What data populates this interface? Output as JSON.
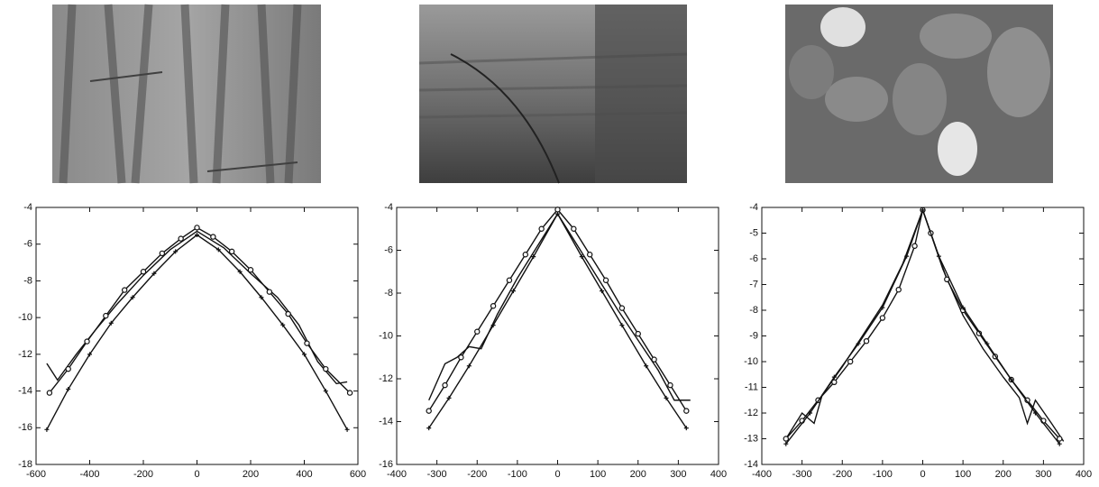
{
  "chart_data": [
    {
      "type": "line",
      "xlim": [
        -600,
        600
      ],
      "xticks": [
        -600,
        -400,
        -200,
        0,
        200,
        400,
        600
      ],
      "ylim": [
        -18,
        -4
      ],
      "yticks": [
        -18,
        -16,
        -14,
        -12,
        -10,
        -8,
        -6,
        -4
      ],
      "series": [
        {
          "color": "#111111",
          "marker": "none",
          "x": [
            -560,
            -520,
            -450,
            -380,
            -300,
            -200,
            -100,
            0,
            100,
            200,
            300,
            380,
            450,
            520,
            560
          ],
          "values": [
            -12.5,
            -13.4,
            -12.0,
            -10.7,
            -9.3,
            -7.7,
            -6.3,
            -5.3,
            -6.2,
            -7.6,
            -8.9,
            -10.4,
            -12.4,
            -13.6,
            -13.5
          ]
        },
        {
          "color": "#111111",
          "marker": "circle",
          "x": [
            -550,
            -480,
            -410,
            -340,
            -270,
            -200,
            -130,
            -60,
            0,
            60,
            130,
            200,
            270,
            340,
            410,
            480,
            570
          ],
          "values": [
            -14.1,
            -12.8,
            -11.3,
            -9.9,
            -8.5,
            -7.5,
            -6.5,
            -5.7,
            -5.1,
            -5.6,
            -6.4,
            -7.4,
            -8.6,
            -9.8,
            -11.4,
            -12.8,
            -14.1
          ]
        },
        {
          "color": "#111111",
          "marker": "plus",
          "x": [
            -560,
            -480,
            -400,
            -320,
            -240,
            -160,
            -80,
            0,
            80,
            160,
            240,
            320,
            400,
            480,
            560
          ],
          "values": [
            -16.1,
            -13.9,
            -12.0,
            -10.3,
            -8.9,
            -7.6,
            -6.4,
            -5.5,
            -6.3,
            -7.5,
            -8.9,
            -10.4,
            -12.0,
            -14.0,
            -16.1
          ]
        }
      ]
    },
    {
      "type": "line",
      "xlim": [
        -400,
        400
      ],
      "xticks": [
        -400,
        -300,
        -200,
        -100,
        0,
        100,
        200,
        300,
        400
      ],
      "ylim": [
        -16,
        -4
      ],
      "yticks": [
        -16,
        -14,
        -12,
        -10,
        -8,
        -6,
        -4
      ],
      "series": [
        {
          "color": "#111111",
          "marker": "none",
          "x": [
            -320,
            -280,
            -250,
            -220,
            -190,
            -150,
            -100,
            -50,
            0,
            50,
            100,
            150,
            200,
            250,
            290,
            330
          ],
          "values": [
            -13.0,
            -11.3,
            -11.0,
            -10.5,
            -10.6,
            -9.0,
            -7.3,
            -5.8,
            -4.3,
            -5.8,
            -7.3,
            -8.8,
            -10.2,
            -11.6,
            -13.0,
            -13.0
          ]
        },
        {
          "color": "#111111",
          "marker": "circle",
          "x": [
            -320,
            -280,
            -240,
            -200,
            -160,
            -120,
            -80,
            -40,
            0,
            40,
            80,
            120,
            160,
            200,
            240,
            280,
            320
          ],
          "values": [
            -13.5,
            -12.3,
            -11.0,
            -9.8,
            -8.6,
            -7.4,
            -6.2,
            -5.0,
            -4.1,
            -5.0,
            -6.2,
            -7.4,
            -8.7,
            -9.9,
            -11.1,
            -12.3,
            -13.5
          ]
        },
        {
          "color": "#111111",
          "marker": "plus",
          "x": [
            -320,
            -270,
            -220,
            -160,
            -110,
            -60,
            0,
            60,
            110,
            160,
            220,
            270,
            320
          ],
          "values": [
            -14.3,
            -12.9,
            -11.4,
            -9.5,
            -7.9,
            -6.3,
            -4.3,
            -6.3,
            -7.9,
            -9.5,
            -11.4,
            -12.9,
            -14.3
          ]
        }
      ]
    },
    {
      "type": "line",
      "xlim": [
        -400,
        400
      ],
      "xticks": [
        -400,
        -300,
        -200,
        -100,
        0,
        100,
        200,
        300,
        400
      ],
      "ylim": [
        -14,
        -4
      ],
      "yticks": [
        -14,
        -13,
        -12,
        -11,
        -10,
        -9,
        -8,
        -7,
        -6,
        -5,
        -4
      ],
      "series": [
        {
          "color": "#111111",
          "marker": "none",
          "x": [
            -340,
            -300,
            -270,
            -250,
            -200,
            -150,
            -100,
            -50,
            0,
            50,
            100,
            150,
            200,
            240,
            260,
            280,
            320,
            350
          ],
          "values": [
            -13.0,
            -12.0,
            -12.4,
            -11.3,
            -10.2,
            -9.0,
            -7.8,
            -6.2,
            -4.1,
            -6.4,
            -8.2,
            -9.5,
            -10.6,
            -11.4,
            -12.4,
            -11.5,
            -12.4,
            -13.1
          ]
        },
        {
          "color": "#111111",
          "marker": "circle",
          "x": [
            -340,
            -300,
            -260,
            -220,
            -180,
            -140,
            -100,
            -60,
            -20,
            0,
            20,
            60,
            100,
            140,
            180,
            220,
            260,
            300,
            340
          ],
          "values": [
            -13.0,
            -12.3,
            -11.5,
            -10.8,
            -10.0,
            -9.2,
            -8.3,
            -7.2,
            -5.5,
            -4.1,
            -5.0,
            -6.8,
            -8.0,
            -8.9,
            -9.8,
            -10.7,
            -11.5,
            -12.3,
            -13.0
          ]
        },
        {
          "color": "#111111",
          "marker": "plus",
          "x": [
            -340,
            -280,
            -220,
            -160,
            -100,
            -40,
            0,
            40,
            100,
            160,
            220,
            280,
            340
          ],
          "values": [
            -13.2,
            -12.0,
            -10.6,
            -9.3,
            -7.9,
            -5.9,
            -4.1,
            -5.9,
            -7.9,
            -9.3,
            -10.7,
            -12.0,
            -13.2
          ]
        }
      ]
    }
  ]
}
